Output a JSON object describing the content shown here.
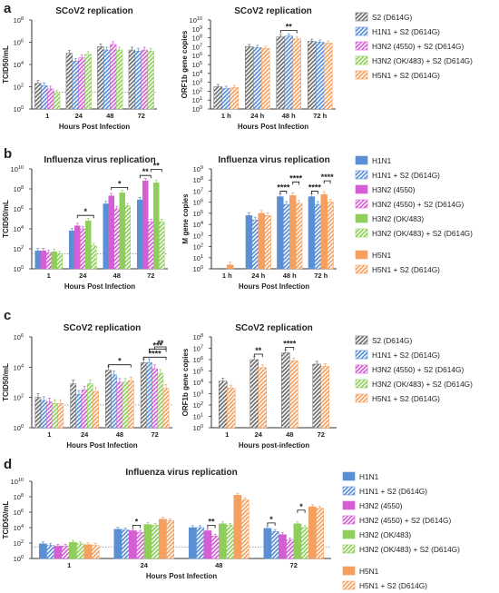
{
  "colors": {
    "S2": "#6e6e6e",
    "H1N1": "#5b8fd4",
    "H3N2_4550": "#d45fd4",
    "H3N2_OK483": "#8fce5a",
    "H5N1": "#f5a060",
    "threshold": "#888888"
  },
  "chart_data": [
    {
      "id": "a1",
      "panel": "a",
      "type": "bar",
      "title": "SCoV2 replication",
      "xlabel": "Hours Post Infection",
      "ylabel": "TCID50/mL",
      "ylog": true,
      "ylim_exp": [
        0,
        8
      ],
      "ytick_exps": [
        0,
        2,
        4,
        6,
        8
      ],
      "categories": [
        "1",
        "24",
        "48",
        "72"
      ],
      "dotted_line_exp": 1.5,
      "series": [
        {
          "key": "S2",
          "hatched": true,
          "values": [
            2.3,
            5.0,
            5.6,
            5.3
          ]
        },
        {
          "key": "H1N1",
          "hatched": true,
          "values": [
            2.1,
            4.3,
            5.3,
            5.2
          ]
        },
        {
          "key": "H3N2_4550",
          "hatched": true,
          "values": [
            1.8,
            4.6,
            5.8,
            5.3
          ]
        },
        {
          "key": "H3N2_OK483",
          "hatched": true,
          "values": [
            1.4,
            4.9,
            5.3,
            5.2
          ]
        }
      ],
      "sig": []
    },
    {
      "id": "a2",
      "panel": "a",
      "type": "bar",
      "title": "SCoV2 replication",
      "xlabel": "Hours Post Infection",
      "ylabel": "ORF1b gene copies",
      "ylog": true,
      "ylim_exp": [
        0,
        10
      ],
      "ytick_exps": [
        0,
        1,
        2,
        3,
        4,
        5,
        6,
        7,
        8,
        9,
        10
      ],
      "categories": [
        "1 h",
        "24 h",
        "48 h",
        "72 h"
      ],
      "dotted_line_exp": null,
      "series": [
        {
          "key": "S2",
          "hatched": true,
          "values": [
            2.5,
            7.0,
            8.1,
            7.6
          ]
        },
        {
          "key": "H1N1",
          "hatched": true,
          "values": [
            2.3,
            6.9,
            8.2,
            7.5
          ]
        },
        {
          "key": "H5N1",
          "hatched": true,
          "values": [
            2.4,
            6.8,
            7.9,
            7.4
          ]
        }
      ],
      "sig": [
        {
          "group": 2,
          "from": 0,
          "to": 2,
          "label": "**"
        }
      ]
    },
    {
      "id": "b1",
      "panel": "b",
      "type": "bar",
      "title": "Influenza virus replication",
      "xlabel": "Hours Post Infection",
      "ylabel": "TCID50/mL",
      "ylog": true,
      "ylim_exp": [
        0,
        10
      ],
      "ytick_exps": [
        0,
        2,
        4,
        6,
        8,
        10
      ],
      "categories": [
        "1",
        "24",
        "48",
        "72"
      ],
      "dotted_line_exp": 1.5,
      "series": [
        {
          "key": "H1N1",
          "hatched": false,
          "values": [
            1.8,
            3.8,
            6.5,
            6.9
          ]
        },
        {
          "key": "H3N2_4550",
          "hatched": false,
          "values": [
            1.8,
            4.3,
            7.3,
            8.8
          ]
        },
        {
          "key": "H3N2_4550",
          "hatched": true,
          "values": [
            1.6,
            4.0,
            6.0,
            4.7
          ]
        },
        {
          "key": "H3N2_OK483",
          "hatched": false,
          "values": [
            1.7,
            4.8,
            7.6,
            8.6
          ]
        },
        {
          "key": "H3N2_OK483",
          "hatched": true,
          "values": [
            1.5,
            2.3,
            6.3,
            4.7
          ]
        }
      ],
      "sig": [
        {
          "group": 1,
          "from": 1,
          "to": 4,
          "label": "*"
        },
        {
          "group": 2,
          "from": 1,
          "to": 4,
          "label": "*"
        },
        {
          "group": 3,
          "from": 0,
          "to": 2,
          "label": "**"
        },
        {
          "group": 3,
          "from": 2,
          "to": 4,
          "label": "**"
        }
      ]
    },
    {
      "id": "b2",
      "panel": "b",
      "type": "bar",
      "title": "Influenza virus replication",
      "xlabel": "Hours Post Infection",
      "ylabel": "M gene copies",
      "ylog": true,
      "ylim_exp": [
        0,
        9
      ],
      "ytick_exps": [
        0,
        1,
        2,
        3,
        4,
        5,
        6,
        7,
        8,
        9
      ],
      "categories": [
        "1 h",
        "24 h",
        "48 h",
        "72 h"
      ],
      "dotted_line_exp": null,
      "series": [
        {
          "key": "H1N1",
          "hatched": false,
          "values": [
            0,
            4.8,
            6.5,
            6.5
          ]
        },
        {
          "key": "H1N1",
          "hatched": true,
          "values": [
            0,
            4.4,
            5.8,
            5.8
          ]
        },
        {
          "key": "H5N1",
          "hatched": false,
          "values": [
            0.35,
            5.0,
            6.6,
            6.7
          ]
        },
        {
          "key": "H5N1",
          "hatched": true,
          "values": [
            0,
            4.8,
            5.9,
            6.0
          ]
        }
      ],
      "sig": [
        {
          "group": 2,
          "from": 0,
          "to": 1,
          "label": "****"
        },
        {
          "group": 2,
          "from": 2,
          "to": 3,
          "label": "****"
        },
        {
          "group": 3,
          "from": 0,
          "to": 1,
          "label": "****"
        },
        {
          "group": 3,
          "from": 2,
          "to": 3,
          "label": "****"
        }
      ]
    },
    {
      "id": "c1",
      "panel": "c",
      "type": "bar",
      "title": "SCoV2 replication",
      "xlabel": "Hours Post Infection",
      "ylabel": "TCID50/mL",
      "ylog": true,
      "ylim_exp": [
        0,
        6
      ],
      "ytick_exps": [
        0,
        2,
        4,
        6
      ],
      "categories": [
        "1",
        "24",
        "48",
        "72"
      ],
      "dotted_line_exp": 1.5,
      "series": [
        {
          "key": "S2",
          "hatched": true,
          "values": [
            2.0,
            2.9,
            3.8,
            4.3
          ]
        },
        {
          "key": "H1N1",
          "hatched": true,
          "values": [
            1.8,
            2.2,
            3.5,
            4.3
          ]
        },
        {
          "key": "H3N2_4550",
          "hatched": true,
          "values": [
            1.7,
            2.5,
            3.0,
            3.9
          ]
        },
        {
          "key": "H3N2_OK483",
          "hatched": true,
          "values": [
            1.6,
            2.9,
            3.0,
            3.6
          ]
        },
        {
          "key": "H5N1",
          "hatched": true,
          "values": [
            1.6,
            2.4,
            3.1,
            2.6
          ]
        }
      ],
      "sig": [
        {
          "group": 2,
          "from": 0,
          "to": 4,
          "label": "*"
        },
        {
          "group": 3,
          "from": 0,
          "to": 4,
          "label": "****"
        },
        {
          "group": 3,
          "from": 1,
          "to": 4,
          "label": "***"
        },
        {
          "group": 3,
          "from": 2,
          "to": 4,
          "label": "**"
        }
      ]
    },
    {
      "id": "c2",
      "panel": "c",
      "type": "bar",
      "title": "SCoV2 replication",
      "xlabel": "Hours post-infection",
      "ylabel": "ORF1b gene copies",
      "ylog": true,
      "ylim_exp": [
        0,
        8
      ],
      "ytick_exps": [
        0,
        1,
        2,
        3,
        4,
        5,
        6,
        7,
        8
      ],
      "categories": [
        "1",
        "24",
        "48",
        "72"
      ],
      "dotted_line_exp": null,
      "series": [
        {
          "key": "S2",
          "hatched": true,
          "values": [
            4.1,
            6.0,
            6.6,
            5.6
          ]
        },
        {
          "key": "H5N1",
          "hatched": true,
          "values": [
            3.5,
            5.3,
            5.9,
            5.4
          ]
        }
      ],
      "sig": [
        {
          "group": 1,
          "from": 0,
          "to": 1,
          "label": "**"
        },
        {
          "group": 2,
          "from": 0,
          "to": 1,
          "label": "****"
        }
      ]
    },
    {
      "id": "d1",
      "panel": "d",
      "type": "bar",
      "title": "Influenza virus replication",
      "xlabel": "Hours Post Infection",
      "ylabel": "TCID50/mL",
      "ylog": true,
      "ylim_exp": [
        0,
        10
      ],
      "ytick_exps": [
        0,
        2,
        4,
        6,
        8,
        10
      ],
      "categories": [
        "1",
        "24",
        "48",
        "72"
      ],
      "dotted_line_exp": 1.5,
      "series": [
        {
          "key": "H1N1",
          "hatched": false,
          "values": [
            1.9,
            3.8,
            4.0,
            3.9
          ]
        },
        {
          "key": "H1N1",
          "hatched": true,
          "values": [
            1.7,
            3.7,
            4.0,
            3.5
          ]
        },
        {
          "key": "H3N2_4550",
          "hatched": false,
          "values": [
            1.6,
            3.6,
            3.6,
            3.1
          ]
        },
        {
          "key": "H3N2_4550",
          "hatched": true,
          "values": [
            1.6,
            3.4,
            2.9,
            2.4
          ]
        },
        {
          "key": "H3N2_OK483",
          "hatched": false,
          "values": [
            2.1,
            4.4,
            4.5,
            4.5
          ]
        },
        {
          "key": "H3N2_OK483",
          "hatched": true,
          "values": [
            1.9,
            4.3,
            4.3,
            4.0
          ]
        },
        {
          "key": "H5N1",
          "hatched": false,
          "values": [
            1.8,
            5.1,
            8.2,
            6.7
          ]
        },
        {
          "key": "H5N1",
          "hatched": true,
          "values": [
            1.7,
            4.9,
            7.6,
            6.5
          ]
        }
      ],
      "sig": [
        {
          "group": 1,
          "from": 2,
          "to": 3,
          "label": "*"
        },
        {
          "group": 2,
          "from": 2,
          "to": 3,
          "label": "**"
        },
        {
          "group": 3,
          "from": 0,
          "to": 1,
          "label": "*"
        },
        {
          "group": 3,
          "from": 4,
          "to": 5,
          "label": "*"
        }
      ]
    }
  ],
  "panel_labels": {
    "a": "a",
    "b": "b",
    "c": "c",
    "d": "d"
  },
  "legends": {
    "a": [
      {
        "key": "S2",
        "hatched": true,
        "label": "S2 (D614G)"
      },
      {
        "key": "H1N1",
        "hatched": true,
        "label": "H1N1 + S2 (D614G)"
      },
      {
        "key": "H3N2_4550",
        "hatched": true,
        "label": "H3N2 (4550) + S2 (D614G)"
      },
      {
        "key": "H3N2_OK483",
        "hatched": true,
        "label": "H3N2 (OK/483) + S2 (D614G)"
      },
      {
        "key": "H5N1",
        "hatched": true,
        "label": "H5N1 + S2 (D614G)"
      }
    ],
    "b": [
      {
        "key": "H1N1",
        "hatched": false,
        "label": "H1N1"
      },
      {
        "key": "H1N1",
        "hatched": true,
        "label": "H1N1 + S2 (D614G)"
      },
      {
        "key": "H3N2_4550",
        "hatched": false,
        "label": "H3N2 (4550)"
      },
      {
        "key": "H3N2_4550",
        "hatched": true,
        "label": "H3N2 (4550) + S2 (D614G)"
      },
      {
        "key": "H3N2_OK483",
        "hatched": false,
        "label": "H3N2 (OK/483)"
      },
      {
        "key": "H3N2_OK483",
        "hatched": true,
        "label": "H3N2 (OK/483) + S2 (D614G)"
      },
      {
        "key": "H5N1",
        "hatched": false,
        "label": "H5N1",
        "gap_before": true
      },
      {
        "key": "H5N1",
        "hatched": true,
        "label": "H5N1 + S2 (D614G)"
      }
    ],
    "c": [
      {
        "key": "S2",
        "hatched": true,
        "label": "S2 (D614G)"
      },
      {
        "key": "H1N1",
        "hatched": true,
        "label": "H1N1 + S2 (D614G)"
      },
      {
        "key": "H3N2_4550",
        "hatched": true,
        "label": "H3N2 (4550) + S2 (D614G)"
      },
      {
        "key": "H3N2_OK483",
        "hatched": true,
        "label": "H3N2 (OK/483) + S2 (D614G)"
      },
      {
        "key": "H5N1",
        "hatched": true,
        "label": "H5N1 + S2 (D614G)"
      }
    ],
    "d": [
      {
        "key": "H1N1",
        "hatched": false,
        "label": "H1N1"
      },
      {
        "key": "H1N1",
        "hatched": true,
        "label": "H1N1 + S2 (D614G)"
      },
      {
        "key": "H3N2_4550",
        "hatched": false,
        "label": "H3N2 (4550)"
      },
      {
        "key": "H3N2_4550",
        "hatched": true,
        "label": "H3N2 (4550) + S2 (D614G)"
      },
      {
        "key": "H3N2_OK483",
        "hatched": false,
        "label": "H3N2 (OK/483)"
      },
      {
        "key": "H3N2_OK483",
        "hatched": true,
        "label": "H3N2 (OK/483) + S2 (D614G)"
      },
      {
        "key": "H5N1",
        "hatched": false,
        "label": "H5N1",
        "gap_before": true
      },
      {
        "key": "H5N1",
        "hatched": true,
        "label": "H5N1 + S2 (D614G)"
      }
    ]
  }
}
